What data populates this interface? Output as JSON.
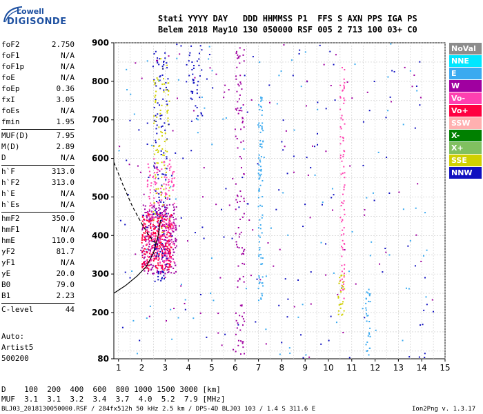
{
  "logo": {
    "line1": "Lowell",
    "line2": "DIGISONDE"
  },
  "header": {
    "row1": "Stati YYYY DAY   DDD HHMMSS P1  FFS S AXN PPS IGA PS",
    "row2": "Belem 2018 May10 130 050000 RSF 005 2 713 100 03+ C0"
  },
  "params": [
    {
      "name": "foF2",
      "value": "2.750"
    },
    {
      "name": "foF1",
      "value": "N/A"
    },
    {
      "name": "foF1p",
      "value": "N/A"
    },
    {
      "name": "foE",
      "value": "N/A"
    },
    {
      "name": "foEp",
      "value": "0.36"
    },
    {
      "name": "fxI",
      "value": "3.05"
    },
    {
      "name": "foEs",
      "value": "N/A"
    },
    {
      "name": "fmin",
      "value": "1.95"
    },
    {
      "name": "MUF(D)",
      "value": "7.95",
      "sep": true
    },
    {
      "name": "M(D)",
      "value": "2.89"
    },
    {
      "name": "D",
      "value": "N/A"
    },
    {
      "name": "h`F",
      "value": "313.0",
      "sep": true
    },
    {
      "name": "h`F2",
      "value": "313.0"
    },
    {
      "name": "h`E",
      "value": "N/A"
    },
    {
      "name": "h`Es",
      "value": "N/A"
    },
    {
      "name": "hmF2",
      "value": "350.0",
      "sep": true
    },
    {
      "name": "hmF1",
      "value": "N/A"
    },
    {
      "name": "hmE",
      "value": "110.0"
    },
    {
      "name": "yF2",
      "value": "81.7"
    },
    {
      "name": "yF1",
      "value": "N/A"
    },
    {
      "name": "yE",
      "value": "20.0"
    },
    {
      "name": "B0",
      "value": "79.0"
    },
    {
      "name": "B1",
      "value": "2.23"
    },
    {
      "name": "C-level",
      "value": "44",
      "sep": true
    }
  ],
  "autoscaling": {
    "label": "Auto:",
    "program": "Artist5",
    "version": "500200"
  },
  "legend": [
    {
      "label": "NoVal",
      "color": "#8c8c8c"
    },
    {
      "label": "NNE",
      "color": "#00e6ff"
    },
    {
      "label": "E",
      "color": "#3aaaf0"
    },
    {
      "label": "W",
      "color": "#a000a0"
    },
    {
      "label": "Vo-",
      "color": "#ff40b0"
    },
    {
      "label": "Vo+",
      "color": "#ff0040"
    },
    {
      "label": "SSW",
      "color": "#ffb0b0"
    },
    {
      "label": "X-",
      "color": "#008000"
    },
    {
      "label": "X+",
      "color": "#80c060"
    },
    {
      "label": "SSE",
      "color": "#d0d000"
    },
    {
      "label": "NNW",
      "color": "#1010c0"
    }
  ],
  "dmuf": {
    "row1": "D    100  200  400  600  800 1000 1500 3000 [km]",
    "row2": "MUF  3.1  3.1  3.2  3.4  3.7  4.0  5.2  7.9 [MHz]"
  },
  "footer": {
    "left": "BLJ03_2018130050000.RSF / 284fx512h 50 kHz 2.5 km / DPS-4D BLJ03 103 / 1.4 S 311.6 E",
    "right": "Ion2Png v. 1.3.17"
  },
  "chart_data": {
    "type": "scatter",
    "title": "",
    "xlabel": "",
    "ylabel": "",
    "xlim": [
      0.8,
      15
    ],
    "ylim": [
      80,
      900
    ],
    "x_ticks": [
      1,
      2,
      3,
      4,
      5,
      6,
      7,
      8,
      9,
      10,
      11,
      12,
      13,
      14,
      15
    ],
    "y_ticks": [
      80,
      200,
      300,
      400,
      500,
      600,
      700,
      800,
      900
    ],
    "grid": true,
    "traces": [
      {
        "name": "",
        "style": "solid",
        "x": [
          0.8,
          1.3,
          1.8,
          2.2,
          2.5,
          2.7,
          2.8
        ],
        "y": [
          250,
          270,
          295,
          320,
          355,
          400,
          440
        ]
      },
      {
        "name": "",
        "style": "dashed",
        "x": [
          0.8,
          1.2,
          1.6,
          2.0,
          2.3,
          2.5,
          2.7
        ],
        "y": [
          590,
          530,
          475,
          430,
          400,
          385,
          375
        ]
      }
    ],
    "echo_clusters": [
      {
        "label": "W",
        "x_range": [
          2.0,
          3.5
        ],
        "y_range": [
          300,
          480
        ],
        "n": 320
      },
      {
        "label": "Vo+",
        "x_range": [
          2.0,
          3.3
        ],
        "y_range": [
          310,
          460
        ],
        "n": 260
      },
      {
        "label": "Vo-",
        "x_range": [
          2.2,
          3.4
        ],
        "y_range": [
          330,
          600
        ],
        "n": 200
      },
      {
        "label": "NNW",
        "x_range": [
          2.5,
          3.1
        ],
        "y_range": [
          280,
          880
        ],
        "n": 120
      },
      {
        "label": "SSE",
        "x_range": [
          2.5,
          3.2
        ],
        "y_range": [
          400,
          860
        ],
        "n": 90
      },
      {
        "label": "E",
        "x_range": [
          7.0,
          7.2
        ],
        "y_range": [
          230,
          760
        ],
        "n": 90
      },
      {
        "label": "E",
        "x_range": [
          11.6,
          11.8
        ],
        "y_range": [
          80,
          260
        ],
        "n": 30
      },
      {
        "label": "W",
        "x_range": [
          6.0,
          6.4
        ],
        "y_range": [
          90,
          890
        ],
        "n": 110
      },
      {
        "label": "Vo-",
        "x_range": [
          10.5,
          10.7
        ],
        "y_range": [
          200,
          850
        ],
        "n": 80
      },
      {
        "label": "NNW",
        "x_range": [
          3.9,
          4.6
        ],
        "y_range": [
          700,
          900
        ],
        "n": 40
      },
      {
        "label": "NNW",
        "x_range": [
          1.0,
          14.5
        ],
        "y_range": [
          80,
          900
        ],
        "n": 130
      },
      {
        "label": "E",
        "x_range": [
          1.0,
          14.5
        ],
        "y_range": [
          80,
          900
        ],
        "n": 100
      },
      {
        "label": "W",
        "x_range": [
          1.0,
          14.5
        ],
        "y_range": [
          80,
          900
        ],
        "n": 100
      },
      {
        "label": "SSE",
        "x_range": [
          10.4,
          10.7
        ],
        "y_range": [
          190,
          300
        ],
        "n": 25
      }
    ]
  }
}
